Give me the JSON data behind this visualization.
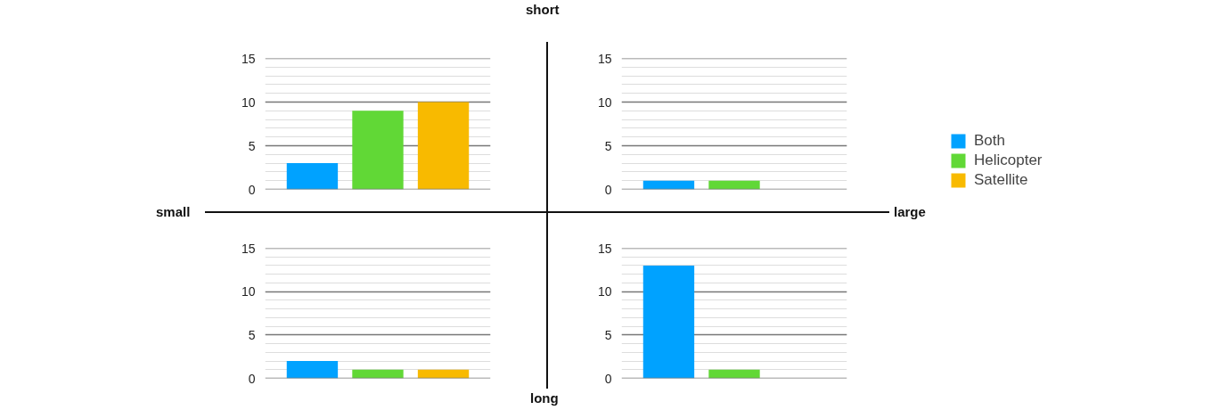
{
  "chart_data": [
    {
      "type": "bar",
      "categories": [
        null
      ],
      "ylim": [
        0,
        15
      ],
      "yticks": [
        0,
        5,
        10,
        15
      ],
      "grid": "y",
      "series": [
        {
          "color": "#00a2ff",
          "values": [
            3
          ]
        },
        {
          "color": "#61d836",
          "values": [
            9
          ]
        },
        {
          "color": "#f8ba00",
          "values": [
            10
          ]
        }
      ]
    },
    {
      "type": "bar",
      "categories": [
        null
      ],
      "ylim": [
        0,
        15
      ],
      "yticks": [
        0,
        5,
        10,
        15
      ],
      "grid": "y",
      "legend": "right",
      "series": [
        {
          "name": "Both",
          "color": "#00a2ff",
          "values": [
            1
          ]
        },
        {
          "name": "Helicopter",
          "color": "#61d836",
          "values": [
            1
          ]
        },
        {
          "name": "Satellite",
          "color": "#f8ba00",
          "values": [
            0
          ]
        }
      ]
    },
    {
      "type": "bar",
      "categories": [
        null
      ],
      "ylim": [
        0,
        15
      ],
      "yticks": [
        0,
        5,
        10,
        15
      ],
      "grid": "y",
      "series": [
        {
          "color": "#00a2ff",
          "values": [
            2
          ]
        },
        {
          "color": "#61d836",
          "values": [
            1
          ]
        },
        {
          "color": "#f8ba00",
          "values": [
            1
          ]
        }
      ]
    },
    {
      "type": "bar",
      "categories": [
        null
      ],
      "ylim": [
        0,
        15
      ],
      "yticks": [
        0,
        5,
        10,
        15
      ],
      "grid": "y",
      "series": [
        {
          "color": "#00a2ff",
          "values": [
            13
          ]
        },
        {
          "color": "#61d836",
          "values": [
            1
          ]
        },
        {
          "color": "#f8ba00",
          "values": [
            0
          ]
        }
      ]
    },
    {
      "type": "other",
      "annotations": [
        "short",
        "long",
        "small",
        "large"
      ]
    }
  ]
}
